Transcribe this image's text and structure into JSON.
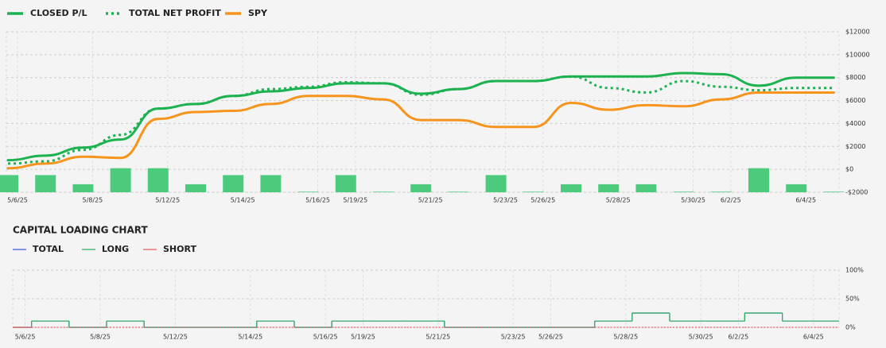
{
  "chart_data": [
    {
      "type": "line",
      "categories": [
        "5/6/25",
        null,
        "5/8/25",
        null,
        "5/12/25",
        null,
        "5/14/25",
        null,
        "5/16/25",
        "5/19/25",
        null,
        "5/21/25",
        null,
        "5/23/25",
        "5/26/25",
        null,
        "5/28/25",
        null,
        "5/30/25",
        "6/2/25",
        null,
        "6/4/25",
        null
      ],
      "series": [
        {
          "name": "CLOSED P/L",
          "color": "#1db250",
          "style": "solid",
          "values": [
            800,
            1200,
            1900,
            2600,
            5300,
            5700,
            6400,
            6800,
            7100,
            7500,
            7500,
            6600,
            7000,
            7700,
            7700,
            8100,
            8100,
            8100,
            8400,
            8300,
            7300,
            8000,
            8000
          ]
        },
        {
          "name": "TOTAL NET PROFIT",
          "color": "#1db250",
          "style": "dotted",
          "values": [
            500,
            700,
            1700,
            3000,
            5300,
            5700,
            6400,
            7000,
            7200,
            7600,
            7500,
            6500,
            7000,
            7700,
            7700,
            8100,
            7100,
            6700,
            7700,
            7200,
            6900,
            7100,
            7100
          ]
        },
        {
          "name": "SPY",
          "color": "#f7941d",
          "style": "solid",
          "values": [
            100,
            500,
            1100,
            1000,
            4400,
            5000,
            5100,
            5700,
            6400,
            6400,
            6100,
            4300,
            4300,
            3700,
            3700,
            5800,
            5200,
            5600,
            5500,
            6100,
            6700,
            6700,
            6700
          ]
        }
      ],
      "bars": {
        "color": "#4ccb7c",
        "values": [
          -500,
          -500,
          -1300,
          100,
          100,
          -1300,
          -500,
          -500,
          -1950,
          -500,
          -1950,
          -1300,
          -1950,
          -500,
          -1950,
          -1300,
          -1300,
          -1300,
          -1950,
          -1950,
          100,
          -1300,
          -1950
        ]
      },
      "ylim": [
        -2000,
        12000
      ],
      "yticks": [
        {
          "value": -2000,
          "label": "-$2000"
        },
        {
          "value": 0,
          "label": "$0"
        },
        {
          "value": 2000,
          "label": "$2000"
        },
        {
          "value": 4000,
          "label": "$4000"
        },
        {
          "value": 6000,
          "label": "$6000"
        },
        {
          "value": 8000,
          "label": "$8000"
        },
        {
          "value": 10000,
          "label": "$10000"
        },
        {
          "value": 12000,
          "label": "$12000"
        }
      ],
      "grid": true
    },
    {
      "type": "step",
      "title": "CAPITAL LOADING CHART",
      "categories": [
        "5/6/25",
        null,
        "5/8/25",
        null,
        "5/12/25",
        null,
        "5/14/25",
        null,
        "5/16/25",
        "5/19/25",
        null,
        "5/21/25",
        null,
        "5/23/25",
        "5/26/25",
        null,
        "5/28/25",
        null,
        "5/30/25",
        "6/2/25",
        null,
        "6/4/25",
        null
      ],
      "series": [
        {
          "name": "TOTAL",
          "color": "#3b5bdb",
          "style": "solid",
          "values": [
            11,
            0,
            11,
            0,
            0,
            0,
            11,
            0,
            11,
            11,
            11,
            0,
            0,
            0,
            0,
            11,
            25,
            11,
            11,
            25,
            11,
            11,
            11
          ]
        },
        {
          "name": "LONG",
          "color": "#2eab5c",
          "style": "solid",
          "values": [
            11,
            0,
            11,
            0,
            0,
            0,
            11,
            0,
            11,
            11,
            11,
            0,
            0,
            0,
            0,
            11,
            25,
            11,
            11,
            25,
            11,
            11,
            11
          ]
        },
        {
          "name": "SHORT",
          "color": "#e06060",
          "style": "solid",
          "values": [
            0,
            0,
            0,
            0,
            0,
            0,
            0,
            0,
            0,
            0,
            0,
            0,
            0,
            0,
            0,
            0,
            0,
            0,
            0,
            0,
            0,
            0,
            0
          ]
        }
      ],
      "ylim": [
        0,
        100
      ],
      "yticks": [
        {
          "value": 0,
          "label": "0%"
        },
        {
          "value": 50,
          "label": "50%"
        },
        {
          "value": 100,
          "label": "100%"
        }
      ],
      "grid": true
    }
  ]
}
